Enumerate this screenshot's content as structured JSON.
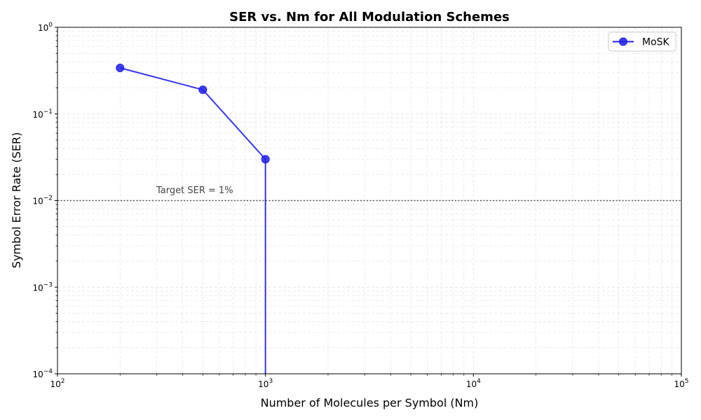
{
  "chart_data": {
    "type": "line",
    "title": "SER vs. Nm for All Modulation Schemes",
    "xlabel": "Number of Molecules per Symbol (Nm)",
    "ylabel": "Symbol Error Rate (SER)",
    "x_scale": "log",
    "y_scale": "log",
    "xlim": [
      100,
      100000
    ],
    "ylim": [
      0.0001,
      1
    ],
    "x_ticks": [
      {
        "value": 100,
        "base": "10",
        "exp": "2"
      },
      {
        "value": 1000,
        "base": "10",
        "exp": "3"
      },
      {
        "value": 10000,
        "base": "10",
        "exp": "4"
      },
      {
        "value": 100000,
        "base": "10",
        "exp": "5"
      }
    ],
    "y_ticks": [
      {
        "value": 0.0001,
        "base": "10",
        "exp": "−4"
      },
      {
        "value": 0.001,
        "base": "10",
        "exp": "−3"
      },
      {
        "value": 0.01,
        "base": "10",
        "exp": "−2"
      },
      {
        "value": 0.1,
        "base": "10",
        "exp": "−1"
      },
      {
        "value": 1,
        "base": "10",
        "exp": "0"
      }
    ],
    "grid": true,
    "legend_position": "top-right",
    "series": [
      {
        "name": "MoSK",
        "color": "#1f1fe8",
        "marker": "circle",
        "x": [
          200,
          500,
          1000,
          1000
        ],
        "y": [
          0.34,
          0.19,
          0.03,
          0
        ],
        "marker_visible": [
          true,
          true,
          true,
          false
        ]
      }
    ],
    "reference_line": {
      "y": 0.01,
      "label": "Target SER = 1%",
      "style": "dotted",
      "color": "#555555"
    }
  }
}
